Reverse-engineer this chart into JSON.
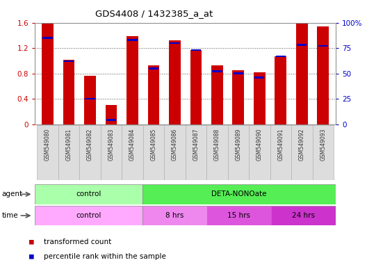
{
  "title": "GDS4408 / 1432385_a_at",
  "samples": [
    "GSM549080",
    "GSM549081",
    "GSM549082",
    "GSM549083",
    "GSM549084",
    "GSM549085",
    "GSM549086",
    "GSM549087",
    "GSM549088",
    "GSM549089",
    "GSM549090",
    "GSM549091",
    "GSM549092",
    "GSM549093"
  ],
  "transformed_counts": [
    1.595,
    1.02,
    0.76,
    0.3,
    1.385,
    0.93,
    1.32,
    1.17,
    0.93,
    0.855,
    0.815,
    1.07,
    1.58,
    1.545
  ],
  "percentile_ranks": [
    85,
    62,
    25,
    4,
    83,
    55,
    80,
    73,
    52,
    50,
    46,
    67,
    78,
    77
  ],
  "bar_color": "#cc0000",
  "percentile_color": "#0000cc",
  "ylim_left": [
    0,
    1.6
  ],
  "ylim_right": [
    0,
    100
  ],
  "yticks_left": [
    0,
    0.4,
    0.8,
    1.2,
    1.6
  ],
  "yticks_right": [
    0,
    25,
    50,
    75,
    100
  ],
  "ytick_labels_left": [
    "0",
    "0.4",
    "0.8",
    "1.2",
    "1.6"
  ],
  "ytick_labels_right": [
    "0",
    "25",
    "50",
    "75",
    "100%"
  ],
  "agent_control_color": "#aaffaa",
  "agent_deta_color": "#55ee55",
  "time_control_color": "#ffaaff",
  "time_8hrs_color": "#ee88ee",
  "time_15hrs_color": "#dd55dd",
  "time_24hrs_color": "#cc33cc",
  "legend_red_label": "transformed count",
  "legend_blue_label": "percentile rank within the sample",
  "bar_width": 0.55,
  "axis_label_color_left": "#cc0000",
  "axis_label_color_right": "#0000cc",
  "background_color": "#ffffff"
}
